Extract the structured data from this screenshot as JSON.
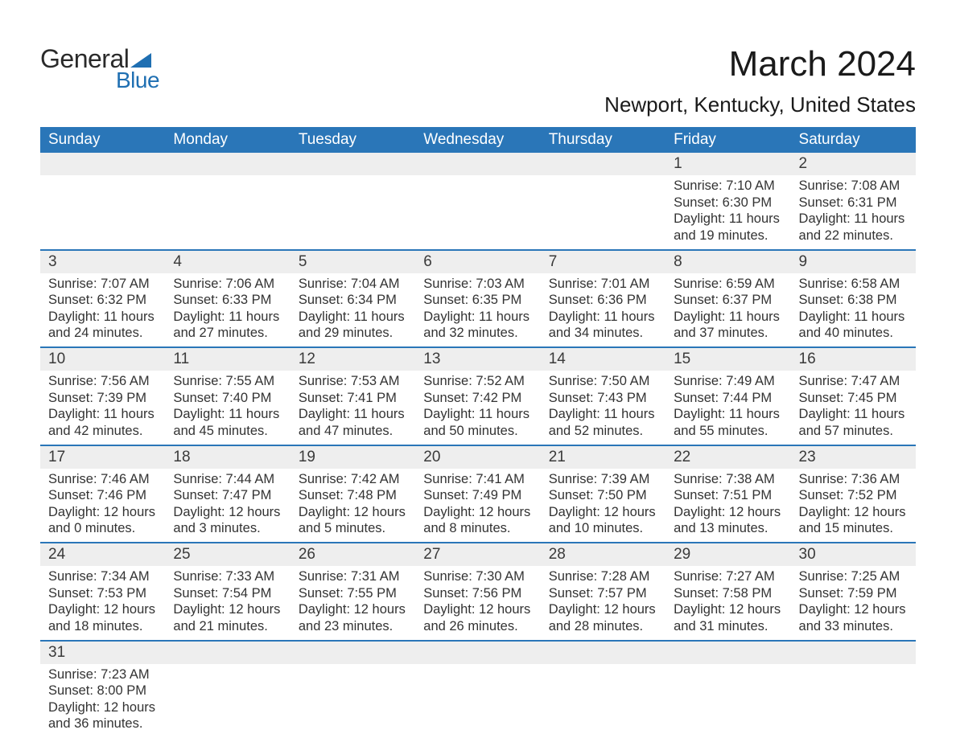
{
  "logo": {
    "text_general": "General",
    "text_blue": "Blue"
  },
  "header": {
    "month_title": "March 2024",
    "location": "Newport, Kentucky, United States"
  },
  "styling": {
    "accent_color": "#2a76b8",
    "logo_blue": "#1f6fb2",
    "header_bg": "#2a76b8",
    "header_text": "#ffffff",
    "daynum_bg": "#eeeeee",
    "body_text": "#333333",
    "font_family": "Arial, Helvetica, sans-serif",
    "month_title_fontsize": 44,
    "location_fontsize": 26,
    "weekday_fontsize": 19,
    "daynum_fontsize": 19,
    "detail_fontsize": 16.5
  },
  "calendar": {
    "weekdays": [
      "Sunday",
      "Monday",
      "Tuesday",
      "Wednesday",
      "Thursday",
      "Friday",
      "Saturday"
    ],
    "weeks": [
      [
        null,
        null,
        null,
        null,
        null,
        {
          "day": "1",
          "sunrise": "Sunrise: 7:10 AM",
          "sunset": "Sunset: 6:30 PM",
          "daylight1": "Daylight: 11 hours",
          "daylight2": "and 19 minutes."
        },
        {
          "day": "2",
          "sunrise": "Sunrise: 7:08 AM",
          "sunset": "Sunset: 6:31 PM",
          "daylight1": "Daylight: 11 hours",
          "daylight2": "and 22 minutes."
        }
      ],
      [
        {
          "day": "3",
          "sunrise": "Sunrise: 7:07 AM",
          "sunset": "Sunset: 6:32 PM",
          "daylight1": "Daylight: 11 hours",
          "daylight2": "and 24 minutes."
        },
        {
          "day": "4",
          "sunrise": "Sunrise: 7:06 AM",
          "sunset": "Sunset: 6:33 PM",
          "daylight1": "Daylight: 11 hours",
          "daylight2": "and 27 minutes."
        },
        {
          "day": "5",
          "sunrise": "Sunrise: 7:04 AM",
          "sunset": "Sunset: 6:34 PM",
          "daylight1": "Daylight: 11 hours",
          "daylight2": "and 29 minutes."
        },
        {
          "day": "6",
          "sunrise": "Sunrise: 7:03 AM",
          "sunset": "Sunset: 6:35 PM",
          "daylight1": "Daylight: 11 hours",
          "daylight2": "and 32 minutes."
        },
        {
          "day": "7",
          "sunrise": "Sunrise: 7:01 AM",
          "sunset": "Sunset: 6:36 PM",
          "daylight1": "Daylight: 11 hours",
          "daylight2": "and 34 minutes."
        },
        {
          "day": "8",
          "sunrise": "Sunrise: 6:59 AM",
          "sunset": "Sunset: 6:37 PM",
          "daylight1": "Daylight: 11 hours",
          "daylight2": "and 37 minutes."
        },
        {
          "day": "9",
          "sunrise": "Sunrise: 6:58 AM",
          "sunset": "Sunset: 6:38 PM",
          "daylight1": "Daylight: 11 hours",
          "daylight2": "and 40 minutes."
        }
      ],
      [
        {
          "day": "10",
          "sunrise": "Sunrise: 7:56 AM",
          "sunset": "Sunset: 7:39 PM",
          "daylight1": "Daylight: 11 hours",
          "daylight2": "and 42 minutes."
        },
        {
          "day": "11",
          "sunrise": "Sunrise: 7:55 AM",
          "sunset": "Sunset: 7:40 PM",
          "daylight1": "Daylight: 11 hours",
          "daylight2": "and 45 minutes."
        },
        {
          "day": "12",
          "sunrise": "Sunrise: 7:53 AM",
          "sunset": "Sunset: 7:41 PM",
          "daylight1": "Daylight: 11 hours",
          "daylight2": "and 47 minutes."
        },
        {
          "day": "13",
          "sunrise": "Sunrise: 7:52 AM",
          "sunset": "Sunset: 7:42 PM",
          "daylight1": "Daylight: 11 hours",
          "daylight2": "and 50 minutes."
        },
        {
          "day": "14",
          "sunrise": "Sunrise: 7:50 AM",
          "sunset": "Sunset: 7:43 PM",
          "daylight1": "Daylight: 11 hours",
          "daylight2": "and 52 minutes."
        },
        {
          "day": "15",
          "sunrise": "Sunrise: 7:49 AM",
          "sunset": "Sunset: 7:44 PM",
          "daylight1": "Daylight: 11 hours",
          "daylight2": "and 55 minutes."
        },
        {
          "day": "16",
          "sunrise": "Sunrise: 7:47 AM",
          "sunset": "Sunset: 7:45 PM",
          "daylight1": "Daylight: 11 hours",
          "daylight2": "and 57 minutes."
        }
      ],
      [
        {
          "day": "17",
          "sunrise": "Sunrise: 7:46 AM",
          "sunset": "Sunset: 7:46 PM",
          "daylight1": "Daylight: 12 hours",
          "daylight2": "and 0 minutes."
        },
        {
          "day": "18",
          "sunrise": "Sunrise: 7:44 AM",
          "sunset": "Sunset: 7:47 PM",
          "daylight1": "Daylight: 12 hours",
          "daylight2": "and 3 minutes."
        },
        {
          "day": "19",
          "sunrise": "Sunrise: 7:42 AM",
          "sunset": "Sunset: 7:48 PM",
          "daylight1": "Daylight: 12 hours",
          "daylight2": "and 5 minutes."
        },
        {
          "day": "20",
          "sunrise": "Sunrise: 7:41 AM",
          "sunset": "Sunset: 7:49 PM",
          "daylight1": "Daylight: 12 hours",
          "daylight2": "and 8 minutes."
        },
        {
          "day": "21",
          "sunrise": "Sunrise: 7:39 AM",
          "sunset": "Sunset: 7:50 PM",
          "daylight1": "Daylight: 12 hours",
          "daylight2": "and 10 minutes."
        },
        {
          "day": "22",
          "sunrise": "Sunrise: 7:38 AM",
          "sunset": "Sunset: 7:51 PM",
          "daylight1": "Daylight: 12 hours",
          "daylight2": "and 13 minutes."
        },
        {
          "day": "23",
          "sunrise": "Sunrise: 7:36 AM",
          "sunset": "Sunset: 7:52 PM",
          "daylight1": "Daylight: 12 hours",
          "daylight2": "and 15 minutes."
        }
      ],
      [
        {
          "day": "24",
          "sunrise": "Sunrise: 7:34 AM",
          "sunset": "Sunset: 7:53 PM",
          "daylight1": "Daylight: 12 hours",
          "daylight2": "and 18 minutes."
        },
        {
          "day": "25",
          "sunrise": "Sunrise: 7:33 AM",
          "sunset": "Sunset: 7:54 PM",
          "daylight1": "Daylight: 12 hours",
          "daylight2": "and 21 minutes."
        },
        {
          "day": "26",
          "sunrise": "Sunrise: 7:31 AM",
          "sunset": "Sunset: 7:55 PM",
          "daylight1": "Daylight: 12 hours",
          "daylight2": "and 23 minutes."
        },
        {
          "day": "27",
          "sunrise": "Sunrise: 7:30 AM",
          "sunset": "Sunset: 7:56 PM",
          "daylight1": "Daylight: 12 hours",
          "daylight2": "and 26 minutes."
        },
        {
          "day": "28",
          "sunrise": "Sunrise: 7:28 AM",
          "sunset": "Sunset: 7:57 PM",
          "daylight1": "Daylight: 12 hours",
          "daylight2": "and 28 minutes."
        },
        {
          "day": "29",
          "sunrise": "Sunrise: 7:27 AM",
          "sunset": "Sunset: 7:58 PM",
          "daylight1": "Daylight: 12 hours",
          "daylight2": "and 31 minutes."
        },
        {
          "day": "30",
          "sunrise": "Sunrise: 7:25 AM",
          "sunset": "Sunset: 7:59 PM",
          "daylight1": "Daylight: 12 hours",
          "daylight2": "and 33 minutes."
        }
      ],
      [
        {
          "day": "31",
          "sunrise": "Sunrise: 7:23 AM",
          "sunset": "Sunset: 8:00 PM",
          "daylight1": "Daylight: 12 hours",
          "daylight2": "and 36 minutes."
        },
        null,
        null,
        null,
        null,
        null,
        null
      ]
    ]
  }
}
